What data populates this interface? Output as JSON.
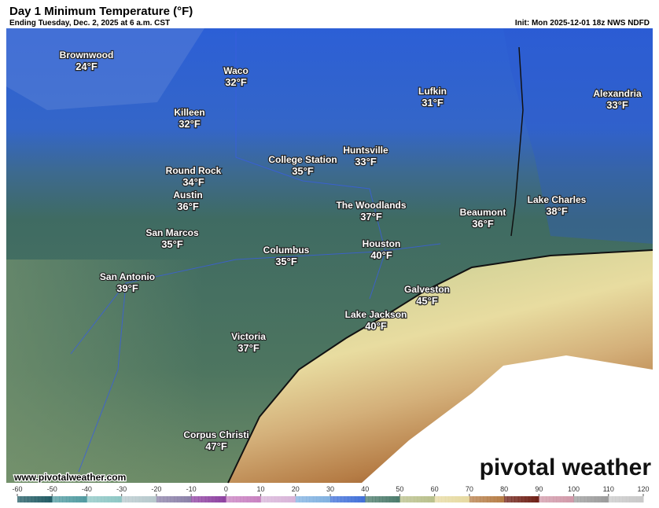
{
  "header": {
    "title": "Day 1 Minimum Temperature (°F)",
    "subtitle": "Ending Tuesday, Dec. 2, 2025 at 6 a.m. CST",
    "init": "Init: Mon 2025-12-01 18z NWS NDFD"
  },
  "cities": [
    {
      "name": "Brownwood",
      "temp": "24°F"
    },
    {
      "name": "Waco",
      "temp": "32°F"
    },
    {
      "name": "Killeen",
      "temp": "32°F"
    },
    {
      "name": "Lufkin",
      "temp": "31°F"
    },
    {
      "name": "Alexandria",
      "temp": "33°F"
    },
    {
      "name": "College Station",
      "temp": "35°F"
    },
    {
      "name": "Huntsville",
      "temp": "33°F"
    },
    {
      "name": "Round Rock",
      "temp": "34°F"
    },
    {
      "name": "Austin",
      "temp": "36°F"
    },
    {
      "name": "The Woodlands",
      "temp": "37°F"
    },
    {
      "name": "Beaumont",
      "temp": "36°F"
    },
    {
      "name": "Lake Charles",
      "temp": "38°F"
    },
    {
      "name": "San Marcos",
      "temp": "35°F"
    },
    {
      "name": "Columbus",
      "temp": "35°F"
    },
    {
      "name": "Houston",
      "temp": "40°F"
    },
    {
      "name": "San Antonio",
      "temp": "39°F"
    },
    {
      "name": "Galveston",
      "temp": "45°F"
    },
    {
      "name": "Lake Jackson",
      "temp": "40°F"
    },
    {
      "name": "Victoria",
      "temp": "37°F"
    },
    {
      "name": "Corpus Christi",
      "temp": "47°F"
    }
  ],
  "colorbar": {
    "ticks": [
      -60,
      -50,
      -40,
      -30,
      -20,
      -10,
      0,
      10,
      20,
      30,
      40,
      50,
      60,
      70,
      80,
      90,
      100,
      110,
      120
    ]
  },
  "watermark": {
    "url": "www.pivotalweather.com",
    "brand": "pivotal weather"
  }
}
